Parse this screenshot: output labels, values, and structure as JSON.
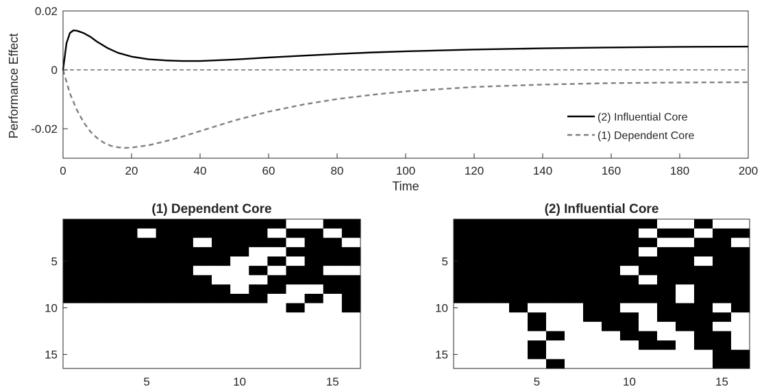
{
  "chart_data": [
    {
      "type": "line",
      "xlabel": "Time",
      "ylabel": "Performance Effect",
      "xlim": [
        0,
        200
      ],
      "ylim": [
        -0.03,
        0.02
      ],
      "xticks": [
        0,
        20,
        40,
        60,
        80,
        100,
        120,
        140,
        160,
        180,
        200
      ],
      "yticks": [
        -0.02,
        0,
        0.02
      ],
      "ytick_labels": [
        "-0.02",
        "0",
        "0.02"
      ],
      "grid": false,
      "legend_position": "bottom-right",
      "series": [
        {
          "name": "(2) Influential Core",
          "style": "solid",
          "color": "#000000",
          "x": [
            0,
            1,
            2,
            3,
            4,
            6,
            8,
            10,
            13,
            16,
            20,
            25,
            30,
            35,
            40,
            50,
            60,
            70,
            80,
            90,
            100,
            120,
            140,
            160,
            180,
            200
          ],
          "y": [
            0,
            0.009,
            0.0125,
            0.0134,
            0.0133,
            0.0125,
            0.0112,
            0.0095,
            0.0074,
            0.0058,
            0.0045,
            0.0036,
            0.0032,
            0.003,
            0.003,
            0.0035,
            0.0042,
            0.0048,
            0.0054,
            0.0059,
            0.0063,
            0.0069,
            0.0073,
            0.0076,
            0.0078,
            0.0079
          ]
        },
        {
          "name": "(1) Dependent Core",
          "style": "dashed",
          "color": "#7f7f7f",
          "x": [
            0,
            1,
            2,
            4,
            6,
            8,
            10,
            12,
            14,
            16,
            18,
            20,
            25,
            30,
            35,
            40,
            50,
            60,
            70,
            80,
            90,
            100,
            120,
            140,
            160,
            180,
            200
          ],
          "y": [
            0,
            -0.004,
            -0.008,
            -0.0135,
            -0.0178,
            -0.021,
            -0.0232,
            -0.0248,
            -0.0258,
            -0.0263,
            -0.0265,
            -0.0264,
            -0.0256,
            -0.0242,
            -0.0226,
            -0.0208,
            -0.0172,
            -0.0142,
            -0.0118,
            -0.0099,
            -0.0085,
            -0.0073,
            -0.0058,
            -0.005,
            -0.0045,
            -0.0043,
            -0.0042
          ]
        },
        {
          "name": "",
          "style": "dashed-reference",
          "color": "#4d4d4d",
          "x": [
            0,
            200
          ],
          "y": [
            0,
            0
          ]
        }
      ]
    },
    {
      "type": "heatmap",
      "title": "(1) Dependent Core",
      "xticks": [
        5,
        10,
        15
      ],
      "yticks": [
        5,
        10,
        15
      ],
      "colors": {
        "one": "#000000",
        "zero": "#ffffff"
      },
      "matrix": [
        "1111111111110011",
        "1111011111101101",
        "1111111011110110",
        "1111111111001111",
        "1111111110010111",
        "1111111000101100",
        "1111111100011111",
        "1111111110110011",
        "1111111111100101",
        "0000000000001001",
        "0000000000000000",
        "0000000000000000",
        "0000000000000000",
        "0000000000000000",
        "0000000000000000",
        "0000000000000000"
      ]
    },
    {
      "type": "heatmap",
      "title": "(2) Influential Core",
      "xticks": [
        5,
        10,
        15
      ],
      "yticks": [
        5,
        10,
        15
      ],
      "colors": {
        "one": "#000000",
        "zero": "#ffffff"
      },
      "matrix": [
        "1111111111100100",
        "1111111111011011",
        "1111111111100110",
        "1111111111011111",
        "1111111111111011",
        "1111111110111111",
        "1111111111011111",
        "1111111111110111",
        "1111111111110111",
        "0001000110011101",
        "0000100111011110",
        "0000100011001100",
        "0000010001100110",
        "0000100000110110",
        "0000100000000011",
        "0000010000000011"
      ]
    }
  ]
}
